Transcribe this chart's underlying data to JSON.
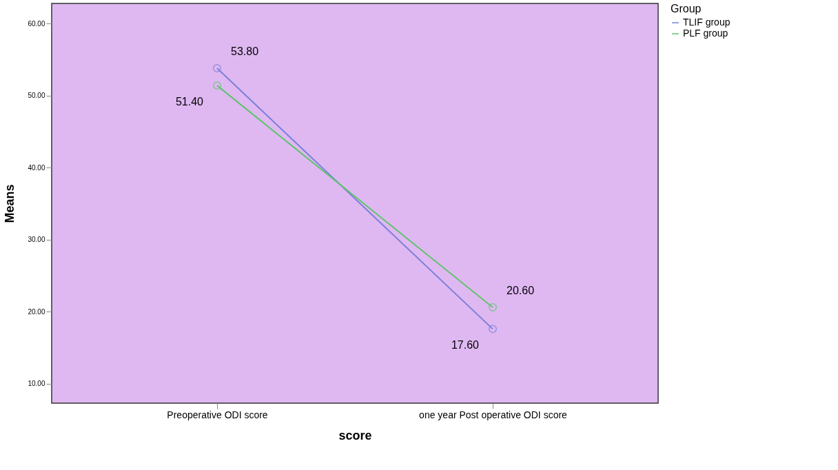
{
  "chart_data": {
    "type": "line",
    "xlabel": "score",
    "ylabel": "Means",
    "legend_title": "Group",
    "categories": [
      "Preoperative ODI score",
      "one year Post operative ODI score"
    ],
    "series": [
      {
        "name": "TLIF group",
        "color": "#7a7fd8",
        "values": [
          53.8,
          17.6
        ],
        "value_labels": [
          "53.80",
          "17.60"
        ]
      },
      {
        "name": "PLF group",
        "color": "#5ec46a",
        "values": [
          51.4,
          20.6
        ],
        "value_labels": [
          "51.40",
          "20.60"
        ]
      }
    ],
    "ylim": [
      7.3,
      62.8
    ],
    "yticks": [
      {
        "value": 10,
        "label": "10.00"
      },
      {
        "value": 20,
        "label": "20.00"
      },
      {
        "value": 30,
        "label": "30.00"
      },
      {
        "value": 40,
        "label": "40.00"
      },
      {
        "value": 50,
        "label": "50.00"
      },
      {
        "value": 60,
        "label": "60.00"
      }
    ],
    "marker": "circle",
    "line_style": "solid",
    "grid": false,
    "legend": "top right"
  }
}
